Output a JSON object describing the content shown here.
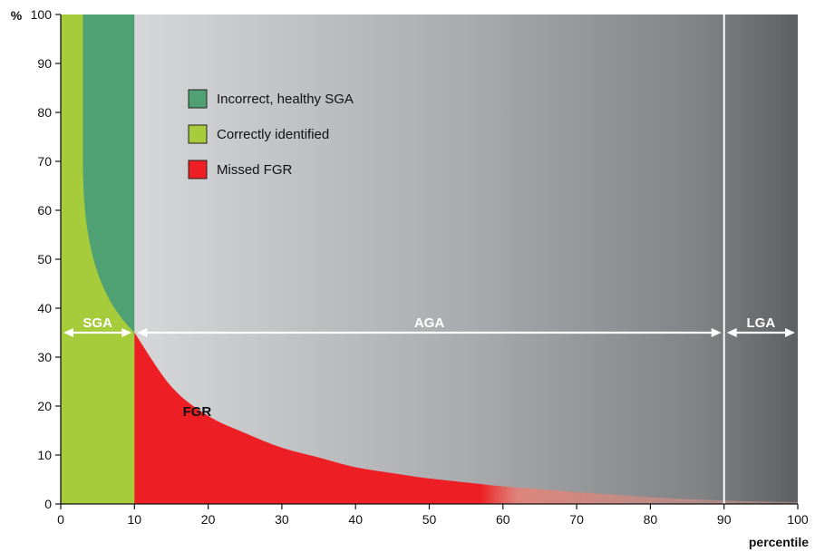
{
  "chart_data": {
    "type": "area",
    "ylabel": "%",
    "xlabel": "percentile",
    "xlim": [
      0,
      100
    ],
    "ylim": [
      0,
      100
    ],
    "x_ticks": [
      0,
      10,
      20,
      30,
      40,
      50,
      60,
      70,
      80,
      90,
      100
    ],
    "y_ticks": [
      0,
      10,
      20,
      30,
      40,
      50,
      60,
      70,
      80,
      90,
      100
    ],
    "grid": false,
    "legend_position": "top-left",
    "legend": [
      {
        "label": "Incorrect, healthy SGA",
        "color": "#4fa173"
      },
      {
        "label": "Correctly identified",
        "color": "#a6cb3b"
      },
      {
        "label": "Missed FGR",
        "color": "#ed1f24"
      }
    ],
    "regions": [
      {
        "label": "SGA",
        "x_from": 0,
        "x_to": 10
      },
      {
        "label": "AGA",
        "x_from": 10,
        "x_to": 90
      },
      {
        "label": "LGA",
        "x_from": 90,
        "x_to": 100
      }
    ],
    "region_arrow_y": 35,
    "annotations": [
      {
        "text": "FGR",
        "x": 18.5,
        "y": 18
      }
    ],
    "series": [
      {
        "name": "Correctly identified",
        "x": [
          0,
          3,
          3.5,
          4,
          5,
          6,
          7,
          8,
          9,
          10
        ],
        "values": [
          100,
          100,
          60,
          54,
          47,
          43,
          40,
          38,
          36,
          35
        ]
      },
      {
        "name": "Missed FGR",
        "x": [
          10,
          15,
          20,
          25,
          30,
          35,
          40,
          45,
          50,
          55,
          60,
          65,
          70,
          75,
          80,
          85,
          90,
          95,
          100
        ],
        "values": [
          35,
          24,
          18,
          14.5,
          11.5,
          9.5,
          7.5,
          6.3,
          5.2,
          4.4,
          3.6,
          3.0,
          2.4,
          1.9,
          1.4,
          1.0,
          0.7,
          0.5,
          0.4
        ]
      }
    ],
    "shading": {
      "fgr_fade_start_x": 57,
      "fgr_fade_end_x": 62,
      "background_left": "#d3d4d6",
      "background_right": "#5f6063"
    }
  }
}
